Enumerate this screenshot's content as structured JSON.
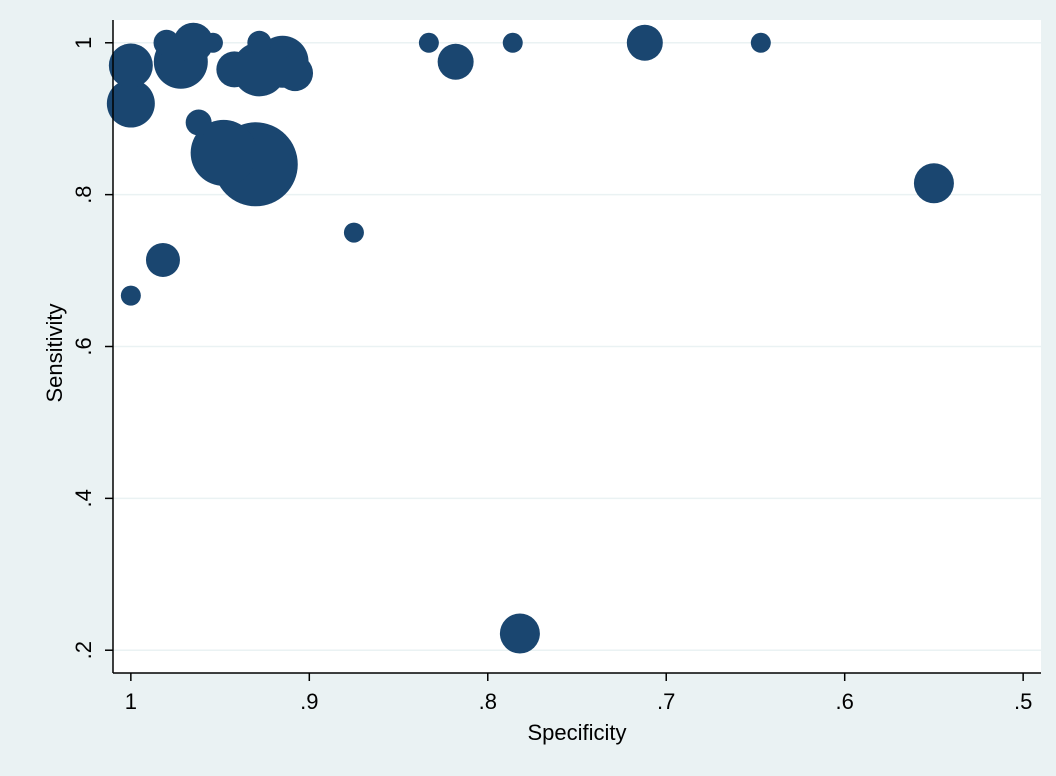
{
  "chart_data": {
    "type": "scatter",
    "xlabel": "Specificity",
    "ylabel": "Sensitivity",
    "x_reversed": true,
    "xlim": [
      1.01,
      0.49
    ],
    "ylim": [
      0.17,
      1.03
    ],
    "xticks": [
      1,
      0.9,
      0.8,
      0.7,
      0.6,
      0.5
    ],
    "xtick_labels": [
      "1",
      ".9",
      ".8",
      ".7",
      ".6",
      ".5"
    ],
    "yticks": [
      0.2,
      0.4,
      0.6,
      0.8,
      1
    ],
    "ytick_labels": [
      ".2",
      ".4",
      ".6",
      ".8",
      "1"
    ],
    "grid": "horizontal",
    "marker_color": "#1a4670",
    "marker_size_meaning": "relative weight (bubble size)",
    "points": [
      {
        "x": 1.0,
        "y": 0.97,
        "size": 22
      },
      {
        "x": 1.0,
        "y": 0.92,
        "size": 24
      },
      {
        "x": 0.98,
        "y": 1.0,
        "size": 13
      },
      {
        "x": 0.965,
        "y": 1.0,
        "size": 20
      },
      {
        "x": 0.972,
        "y": 0.975,
        "size": 27
      },
      {
        "x": 0.954,
        "y": 1.0,
        "size": 10
      },
      {
        "x": 0.962,
        "y": 0.895,
        "size": 13
      },
      {
        "x": 0.942,
        "y": 0.965,
        "size": 18
      },
      {
        "x": 0.948,
        "y": 0.855,
        "size": 33
      },
      {
        "x": 0.93,
        "y": 0.84,
        "size": 42
      },
      {
        "x": 0.928,
        "y": 1.0,
        "size": 12
      },
      {
        "x": 0.928,
        "y": 0.965,
        "size": 27
      },
      {
        "x": 0.915,
        "y": 0.975,
        "size": 26
      },
      {
        "x": 0.908,
        "y": 0.96,
        "size": 18
      },
      {
        "x": 0.875,
        "y": 0.75,
        "size": 10
      },
      {
        "x": 0.833,
        "y": 1.0,
        "size": 10
      },
      {
        "x": 0.818,
        "y": 0.975,
        "size": 18
      },
      {
        "x": 0.786,
        "y": 1.0,
        "size": 10
      },
      {
        "x": 0.712,
        "y": 1.0,
        "size": 18
      },
      {
        "x": 0.647,
        "y": 1.0,
        "size": 10
      },
      {
        "x": 0.55,
        "y": 0.815,
        "size": 20
      },
      {
        "x": 0.982,
        "y": 0.714,
        "size": 17
      },
      {
        "x": 1.0,
        "y": 0.667,
        "size": 10
      },
      {
        "x": 0.782,
        "y": 0.222,
        "size": 20
      }
    ]
  }
}
